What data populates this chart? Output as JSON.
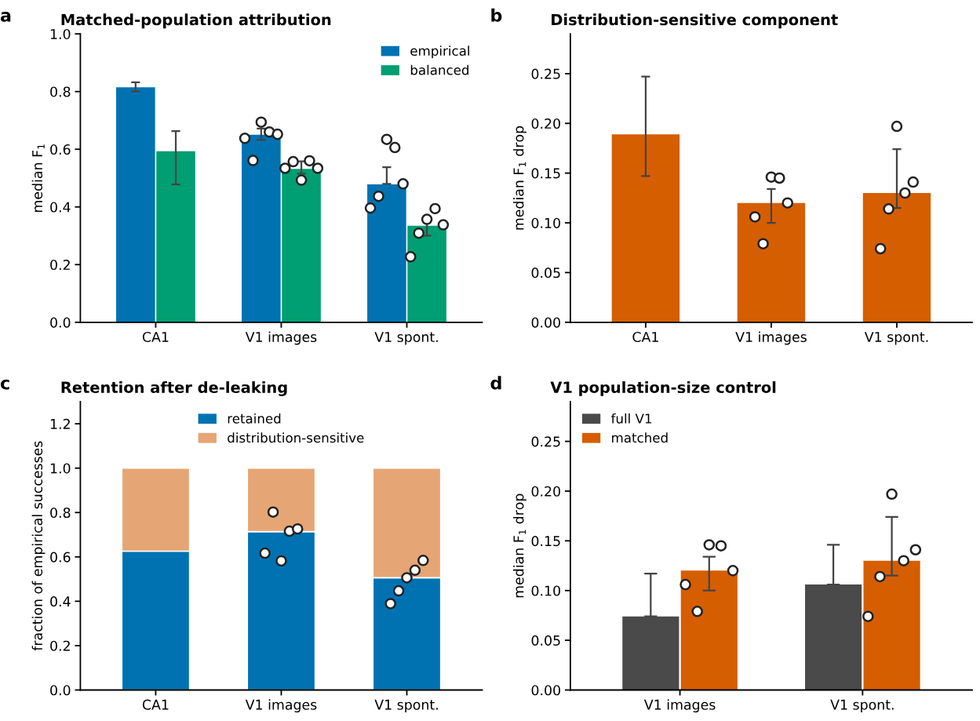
{
  "chart_data": [
    {
      "type": "bar",
      "title": "Matched-population attribution",
      "ylabel": "median F$_{1}$",
      "annotations": [
        "a"
      ],
      "categories": [
        "CA1",
        "V1 images",
        "V1 spont."
      ],
      "ylim": [
        0,
        1.0
      ],
      "yticks": [
        {
          "value": 0,
          "label": "0.0"
        },
        0.2,
        0.4,
        0.6,
        0.8,
        {
          "value": 1,
          "label": "1.0"
        }
      ],
      "grid": false,
      "legend": "top right",
      "series": [
        {
          "name": "empirical",
          "color": "#0072b2",
          "values": [
            0.815,
            0.65,
            0.478
          ],
          "errors": [
            [
              0.8,
              0.832
            ],
            [
              0.632,
              0.672
            ],
            [
              0.48,
              0.538
            ]
          ]
        },
        {
          "type": "scatter",
          "color": "#ffffff",
          "x": [
            "V1 images",
            "V1 images",
            "V1 images",
            "V1 images",
            "V1 images",
            "V1 spont.",
            "V1 spont.",
            "V1 spont.",
            "V1 spont.",
            "V1 spont."
          ],
          "values": [
            0.638,
            0.561,
            0.694,
            0.66,
            0.652,
            0.396,
            0.437,
            0.634,
            0.606,
            0.48
          ]
        },
        {
          "name": "balanced",
          "color": "#009e73",
          "values": [
            0.593,
            0.532,
            0.335
          ],
          "errors": [
            [
              0.478,
              0.663
            ],
            [
              0.515,
              0.558
            ],
            [
              0.3,
              0.35
            ]
          ]
        },
        {
          "type": "scatter",
          "color": "#ffffff",
          "x": [
            "V1 images",
            "V1 images",
            "V1 images",
            "V1 images",
            "V1 images",
            "V1 spont.",
            "V1 spont.",
            "V1 spont.",
            "V1 spont.",
            "V1 spont."
          ],
          "values": [
            0.534,
            0.557,
            0.493,
            0.56,
            0.534,
            0.227,
            0.309,
            0.357,
            0.394,
            0.338
          ]
        }
      ]
    },
    {
      "type": "bar",
      "title": "Distribution-sensitive component",
      "ylabel": "median F$_{1}$ drop",
      "annotations": [
        "b"
      ],
      "categories": [
        "CA1",
        "V1 images",
        "V1 spont."
      ],
      "ylim": [
        0,
        0.29
      ],
      "yticks": [
        {
          "value": 0,
          "label": "0.00"
        },
        0.05,
        {
          "value": 0.1,
          "label": "0.10"
        },
        0.15,
        {
          "value": 0.2,
          "label": "0.20"
        },
        0.25
      ],
      "grid": false,
      "series": [
        {
          "color": "#d55e00",
          "values": [
            0.189,
            0.12,
            0.13
          ],
          "errors": [
            [
              0.147,
              0.247
            ],
            [
              0.1,
              0.134
            ],
            [
              0.115,
              0.174
            ]
          ]
        },
        {
          "type": "scatter",
          "color": "#ffffff",
          "x": [
            "V1 images",
            "V1 images",
            "V1 images",
            "V1 images",
            "V1 images",
            "V1 spont.",
            "V1 spont.",
            "V1 spont.",
            "V1 spont.",
            "V1 spont."
          ],
          "values": [
            0.106,
            0.079,
            0.146,
            0.145,
            0.12,
            0.074,
            0.114,
            0.197,
            0.13,
            0.141
          ]
        }
      ]
    },
    {
      "type": "bar",
      "stacked": true,
      "title": "Retention after de-leaking",
      "ylabel": "fraction of empirical successes",
      "annotations": [
        "c"
      ],
      "categories": [
        "CA1",
        "V1 images",
        "V1 spont."
      ],
      "ylim": [
        0,
        1.3
      ],
      "yticks": [
        {
          "value": 0,
          "label": "0.0"
        },
        0.2,
        0.4,
        0.6,
        0.8,
        {
          "value": 1,
          "label": "1.0"
        },
        1.2
      ],
      "grid": false,
      "legend": "top",
      "series": [
        {
          "name": "retained",
          "color": "#0072b2",
          "values": [
            0.626,
            0.714,
            0.506
          ]
        },
        {
          "name": "distribution-sensitive",
          "color": "#e6a574",
          "values": [
            0.374,
            0.286,
            0.494
          ]
        },
        {
          "type": "scatter",
          "color": "#ffffff",
          "x": [
            "V1 images",
            "V1 images",
            "V1 images",
            "V1 images",
            "V1 images",
            "V1 spont.",
            "V1 spont.",
            "V1 spont.",
            "V1 spont.",
            "V1 spont."
          ],
          "values": [
            0.617,
            0.802,
            0.582,
            0.716,
            0.726,
            0.389,
            0.447,
            0.506,
            0.54,
            0.584
          ]
        }
      ]
    },
    {
      "type": "bar",
      "title": "V1 population-size control",
      "ylabel": "median F$_{1}$ drop",
      "annotations": [
        "d"
      ],
      "categories": [
        "V1 images",
        "V1 spont."
      ],
      "ylim": [
        0,
        0.29
      ],
      "yticks": [
        {
          "value": 0,
          "label": "0.00"
        },
        0.05,
        {
          "value": 0.1,
          "label": "0.10"
        },
        0.15,
        {
          "value": 0.2,
          "label": "0.20"
        },
        0.25
      ],
      "grid": false,
      "legend": "top left",
      "series": [
        {
          "name": "full V1",
          "color": "#4a4a4a",
          "values": [
            0.074,
            0.106
          ],
          "errors": [
            [
              0.074,
              0.117
            ],
            [
              0.106,
              0.146
            ]
          ]
        },
        {
          "name": "matched",
          "color": "#d55e00",
          "values": [
            0.12,
            0.13
          ],
          "errors": [
            [
              0.1,
              0.134
            ],
            [
              0.115,
              0.174
            ]
          ]
        },
        {
          "type": "scatter",
          "color": "#ffffff",
          "x": [
            "V1 images",
            "V1 images",
            "V1 images",
            "V1 images",
            "V1 images",
            "V1 spont.",
            "V1 spont.",
            "V1 spont.",
            "V1 spont.",
            "V1 spont."
          ],
          "values": [
            0.106,
            0.079,
            0.146,
            0.145,
            0.12,
            0.074,
            0.114,
            0.197,
            0.13,
            0.141
          ]
        }
      ]
    }
  ]
}
